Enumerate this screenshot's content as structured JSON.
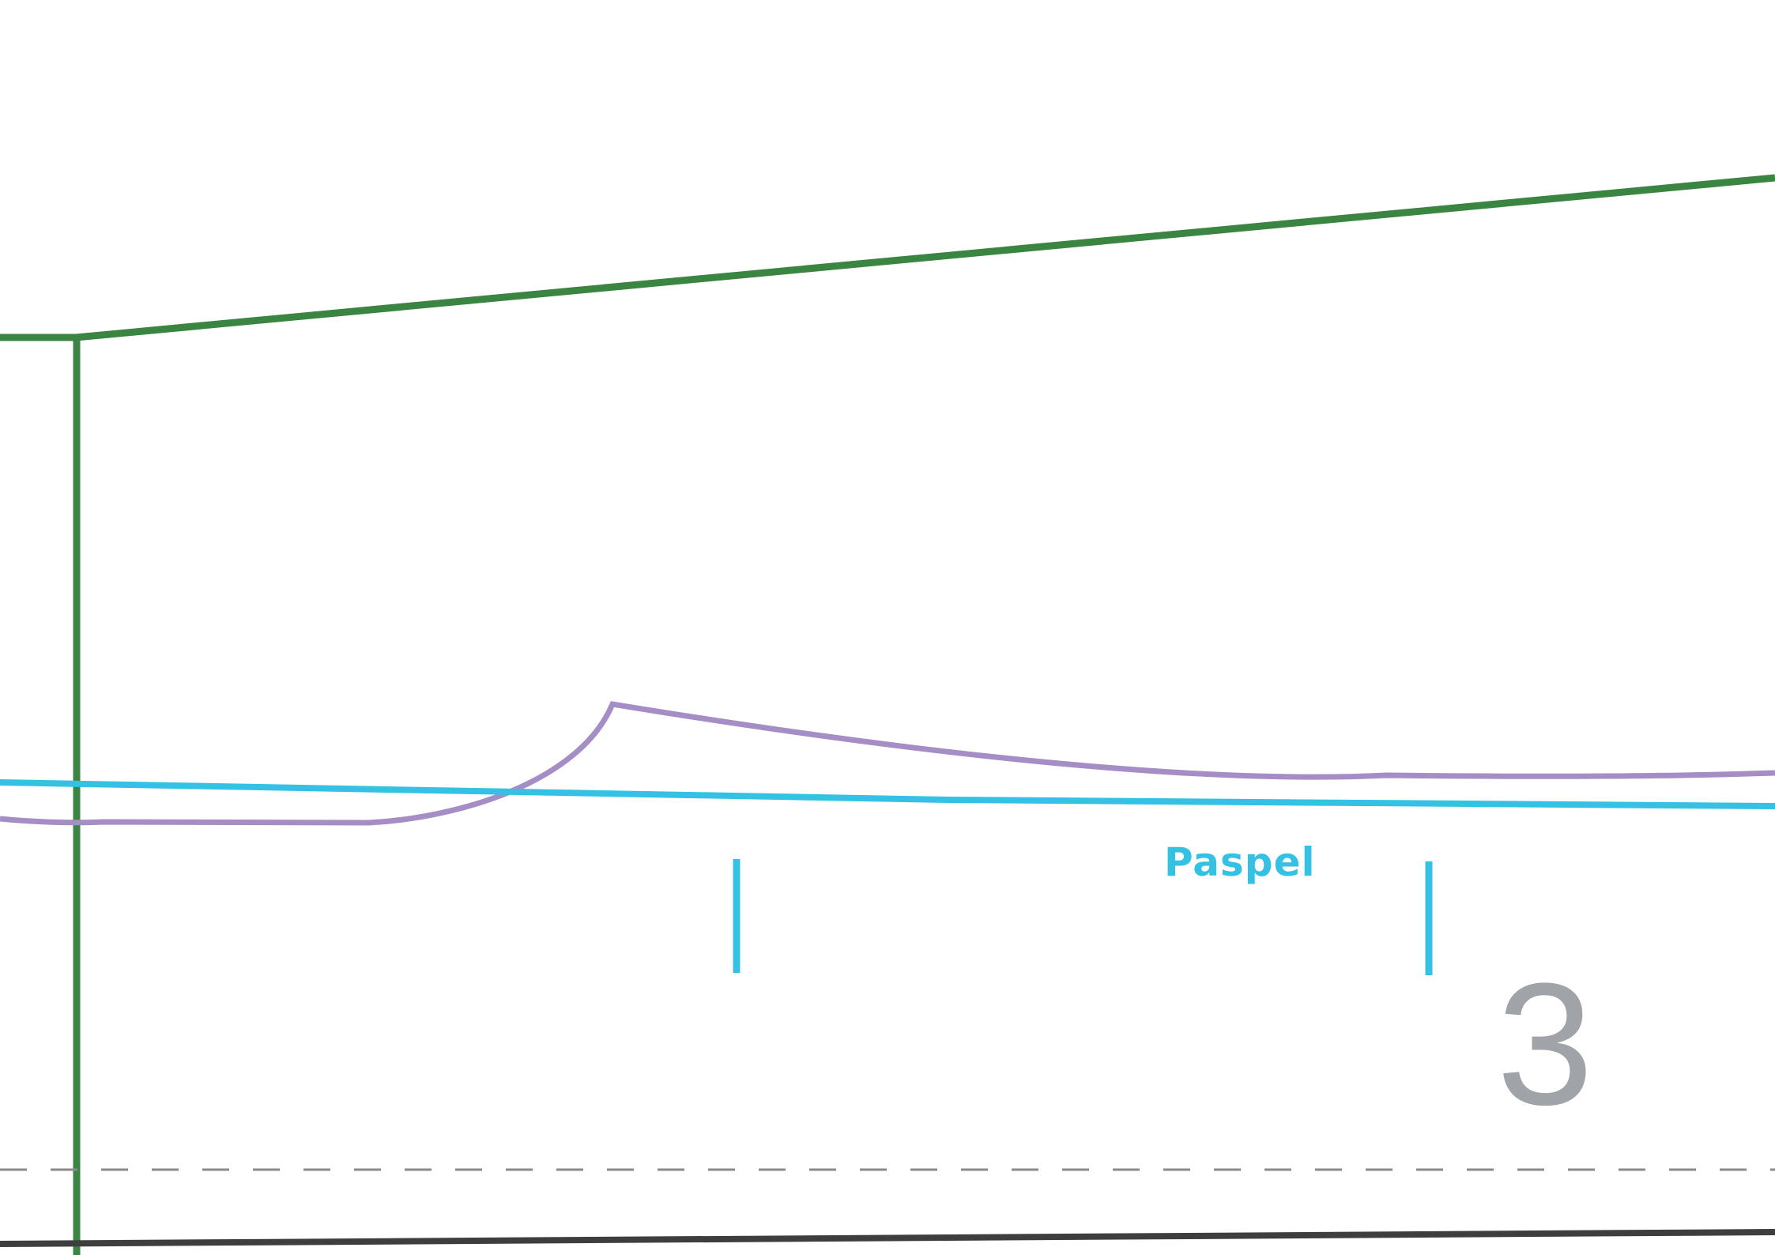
{
  "labels": {
    "piping": "Paspel",
    "piece_number": "3"
  },
  "colors": {
    "green_line": "#3a8542",
    "purple_line": "#a48ec5",
    "cyan_line": "#35c1e3",
    "dark_line": "#3e3e3e",
    "dash_line": "#8a8a8a",
    "number_gray": "#a0a3a7"
  }
}
